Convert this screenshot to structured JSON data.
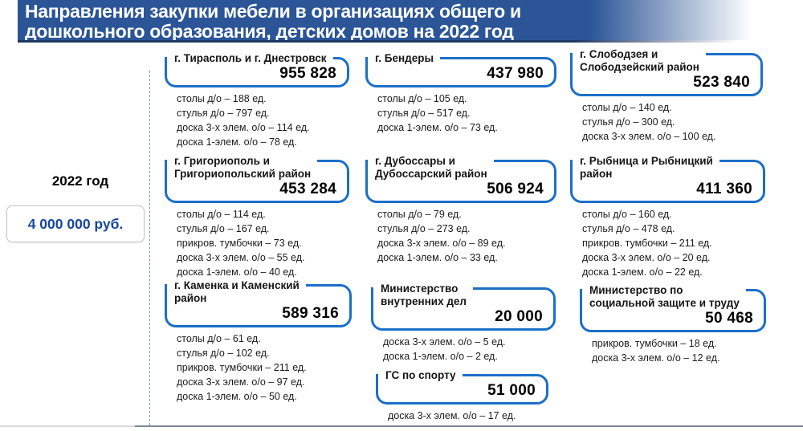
{
  "title_bar": {
    "line1": "Направления закупки мебели в организациях общего и",
    "line2": "дошкольного образования, детских домов на 2022 год"
  },
  "sidebar": {
    "year": "2022 год",
    "budget": "4 000 000 руб."
  },
  "colors": {
    "header_blue": "#2b5597",
    "header_dark_blue": "#1f3864",
    "bracket_border_blue": "#1c6fc9",
    "budget_text_blue": "#17479e"
  },
  "groups": [
    {
      "title": "г. Тирасполь и г. Днестровск",
      "amount": "955 828",
      "items": [
        "столы д/о – 188 ед.",
        "стулья д/о – 797 ед.",
        "доска 3-х элем. о/о – 114 ед.",
        "доска 1-элем. о/о – 78 ед."
      ]
    },
    {
      "title": "г. Бендеры",
      "amount": "437 980",
      "items": [
        "столы д/о – 105 ед.",
        "стулья д/о – 517 ед.",
        "доска 1-элем. о/о – 73 ед."
      ]
    },
    {
      "title": "г. Слободзея и\nСлободзейский район",
      "amount": "523 840",
      "items": [
        "столы д/о – 140 ед.",
        "стулья д/о – 300 ед.",
        "доска 3-х элем. о/о – 100 ед."
      ]
    },
    {
      "title": "г. Григориополь и\nГригориопольский район",
      "amount": "453 284",
      "items": [
        "столы д/о – 114 ед.",
        "стулья д/о – 167 ед.",
        "прикров. тумбочки – 73 ед.",
        "доска 3-х элем. о/о – 55 ед.",
        "доска 1-элем. о/о – 40 ед."
      ]
    },
    {
      "title": "г. Дубоссары и\nДубоссарский район",
      "amount": "506 924",
      "items": [
        "столы д/о – 79 ед.",
        "стулья д/о – 273 ед.",
        "доска 3-х элем. о/о – 89 ед.",
        "доска 1-элем. о/о – 33 ед."
      ]
    },
    {
      "title": "г. Рыбница и Рыбницкий\nрайон",
      "amount": "411 360",
      "items": [
        "столы д/о – 160 ед.",
        "стулья д/о – 478 ед.",
        "прикров. тумбочки – 211 ед.",
        "доска 3-х элем. о/о – 20 ед.",
        "доска 1-элем. о/о – 22 ед.",
        "."
      ]
    },
    {
      "title": "г. Каменка и Каменский\nрайон",
      "amount": "589 316",
      "items": [
        "столы д/о – 61 ед.",
        "стулья д/о – 102 ед.",
        "прикров. тумбочки – 211 ед.",
        "доска 3-х элем. о/о – 97 ед.",
        "доска 1-элем. о/о – 50 ед."
      ]
    },
    {
      "title": "Министерство\nвнутренних дел",
      "amount": "20 000",
      "items": [
        "доска 3-х элем. о/о – 5 ед.",
        "доска 1-элем. о/о – 2 ед."
      ]
    },
    {
      "title": "Министерство по\nсоциальной защите и труду",
      "amount": "50 468",
      "items": [
        "прикров. тумбочки – 18 ед.",
        "доска 3-х элем. о/о – 12 ед."
      ]
    },
    {
      "title": "ГС по спорту",
      "amount": "51 000",
      "items": [
        "доска 3-х элем. о/о – 17 ед."
      ]
    }
  ]
}
